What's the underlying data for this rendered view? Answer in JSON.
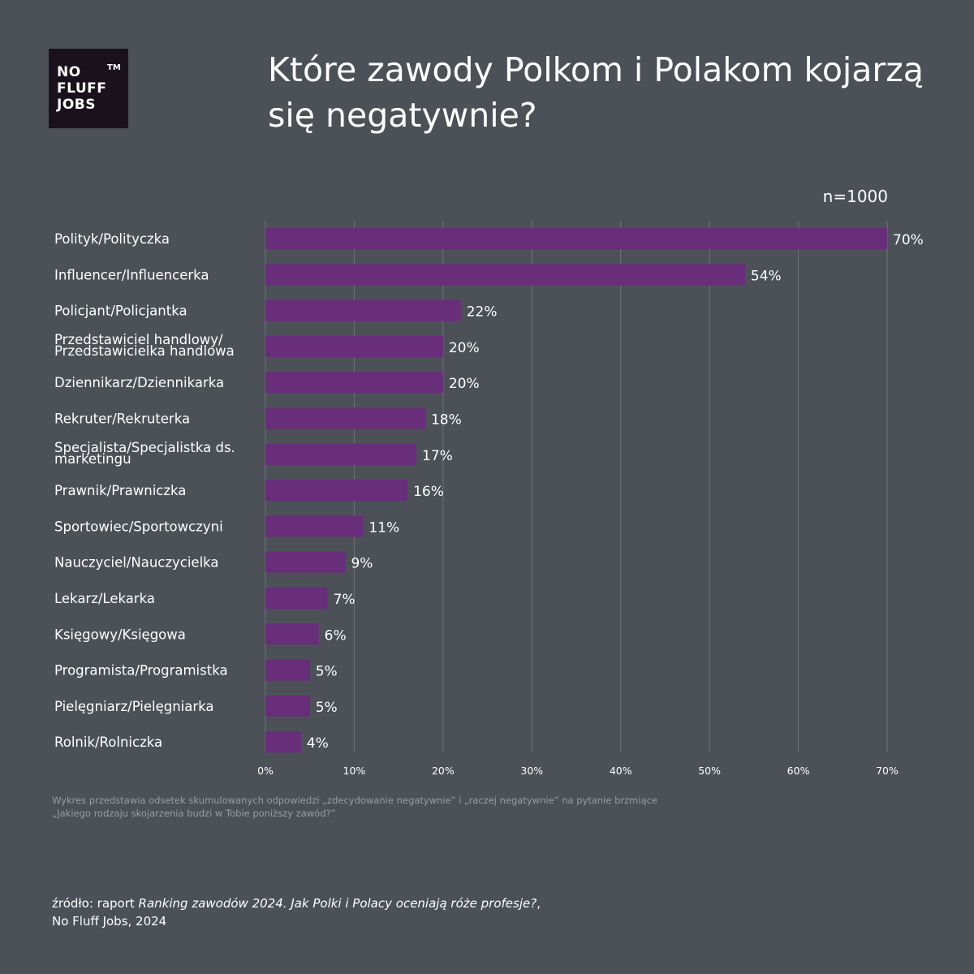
{
  "logo": {
    "lines": [
      "NO",
      "FLUFF",
      "JOBS"
    ],
    "tm": "TM"
  },
  "title": "Które zawody Polkom i Polakom kojarzą się negatywnie?",
  "sample_size": "n=1000",
  "note": "Wykres przedstawia odsetek skumulowanych odpowiedzi „zdecydowanie negatywnie” i „raczej negatywnie” na pytanie brzmiące „Jakiego rodzaju skojarzenia budzi w Tobie poniższy zawód?”",
  "source": {
    "prefix": "źródło: raport ",
    "report_title": "Ranking zawodów 2024. Jak Polki i Polacy oceniają róże profesje?",
    "suffix": ", No Fluff Jobs, 2024"
  },
  "colors": {
    "bar": "#682e7a",
    "background": "#4c5057",
    "grid": "#6f737a"
  },
  "chart_data": {
    "type": "bar",
    "orientation": "horizontal",
    "title": "Które zawody Polkom i Polakom kojarzą się negatywnie?",
    "categories": [
      "Polityk/Polityczka",
      "Influencer/Influencerka",
      "Policjant/Policjantka",
      "Przedstawiciel handlowy/\nPrzedstawicielka handlowa",
      "Dziennikarz/Dziennikarka",
      "Rekruter/Rekruterka",
      "Specjalista/Specjalistka ds.\nmarketingu",
      "Prawnik/Prawniczka",
      "Sportowiec/Sportowczyni",
      "Nauczyciel/Nauczycielka",
      "Lekarz/Lekarka",
      "Księgowy/Księgowa",
      "Programista/Programistka",
      "Pielęgniarz/Pielęgniarka",
      "Rolnik/Rolniczka"
    ],
    "values": [
      70,
      54,
      22,
      20,
      20,
      18,
      17,
      16,
      11,
      9,
      7,
      6,
      5,
      5,
      4
    ],
    "value_labels": [
      "70%",
      "54%",
      "22%",
      "20%",
      "20%",
      "18%",
      "17%",
      "16%",
      "11%",
      "9%",
      "7%",
      "6%",
      "5%",
      "5%",
      "4%"
    ],
    "xlim": [
      0,
      70
    ],
    "xticks": [
      0,
      10,
      20,
      30,
      40,
      50,
      60,
      70
    ],
    "xtick_labels": [
      "0%",
      "10%",
      "20%",
      "30%",
      "40%",
      "50%",
      "60%",
      "70%"
    ],
    "grid": true,
    "unit": "%"
  }
}
